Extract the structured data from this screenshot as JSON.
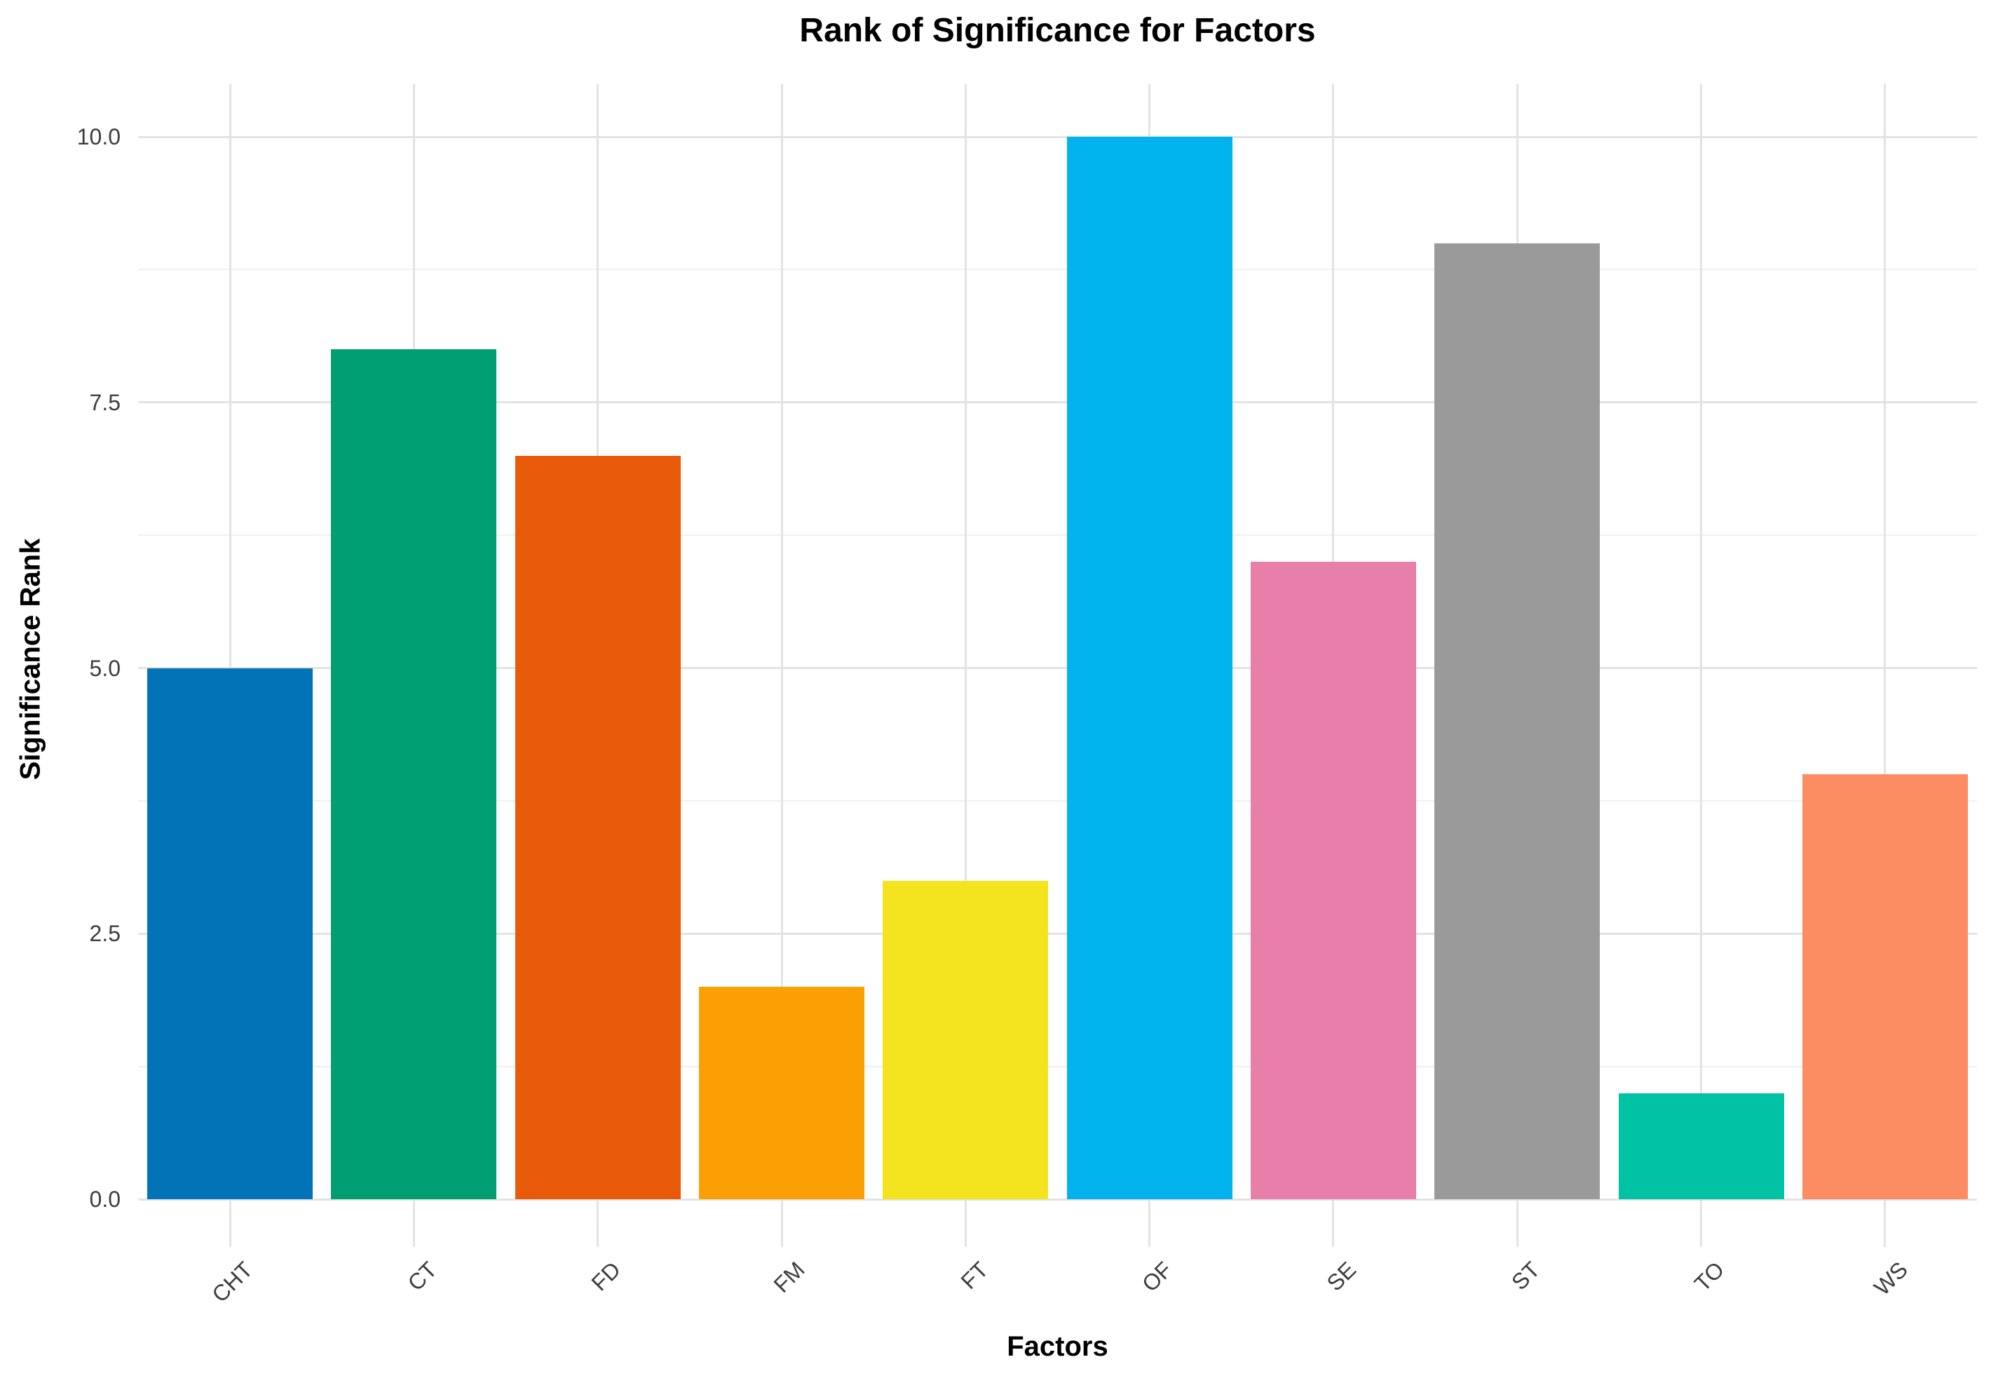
{
  "chart_data": {
    "type": "bar",
    "title": "Rank of Significance for Factors",
    "xlabel": "Factors",
    "ylabel": "Significance Rank",
    "categories": [
      "CHT",
      "CT",
      "FD",
      "FM",
      "FT",
      "OF",
      "SE",
      "ST",
      "TO",
      "WS"
    ],
    "values": [
      5,
      8,
      7,
      2,
      3,
      10,
      6,
      9,
      1,
      4
    ],
    "bar_colors": [
      "#0173B6",
      "#009E73",
      "#E85A0A",
      "#FBA004",
      "#F4E41F",
      "#00B3EC",
      "#E87EAA",
      "#9A9A9A",
      "#00C3A5",
      "#FC8D62"
    ],
    "ylim": [
      0,
      10
    ],
    "ytick_values": [
      0,
      2.5,
      5,
      7.5,
      10
    ],
    "ytick_labels": [
      "0.0",
      "2.5",
      "5.0",
      "7.5",
      "10.0"
    ],
    "ytick_minor_values": [
      1.25,
      3.75,
      6.25,
      8.75
    ],
    "legend": "none",
    "grid": {
      "horizontal": "major and minor lines",
      "vertical": "major line at each category center"
    },
    "colors": {
      "background": "#ffffff",
      "grid_major": "#e3e3e3",
      "grid_minor": "#f0f0f0",
      "axis_tick": "#e3e3e3",
      "tick_label": "#3d3d3d",
      "text": "#000000"
    }
  }
}
